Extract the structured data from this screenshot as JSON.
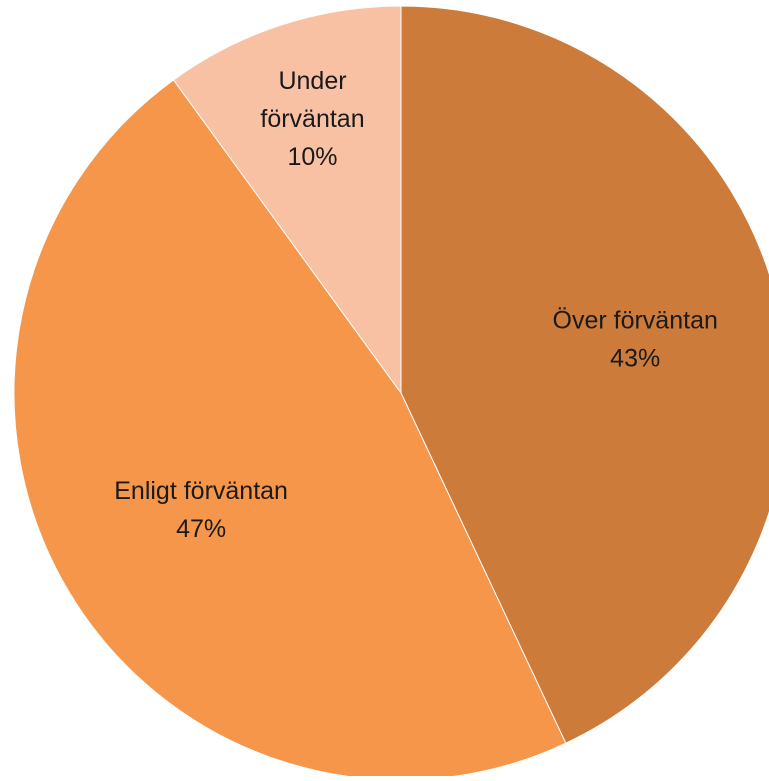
{
  "chart_data": {
    "type": "pie",
    "title": "",
    "slices": [
      {
        "label_lines": [
          "Över förväntan"
        ],
        "percent_label": "43%",
        "value": 43,
        "color": "#CC7B3A"
      },
      {
        "label_lines": [
          "Enligt förväntan"
        ],
        "percent_label": "47%",
        "value": 47,
        "color": "#F5964A"
      },
      {
        "label_lines": [
          "Under",
          "förväntan"
        ],
        "percent_label": "10%",
        "value": 10,
        "color": "#F9C1A3"
      }
    ],
    "start_angle_deg": 0,
    "direction": "clockwise",
    "legend": "none",
    "data_labels": "inside"
  }
}
